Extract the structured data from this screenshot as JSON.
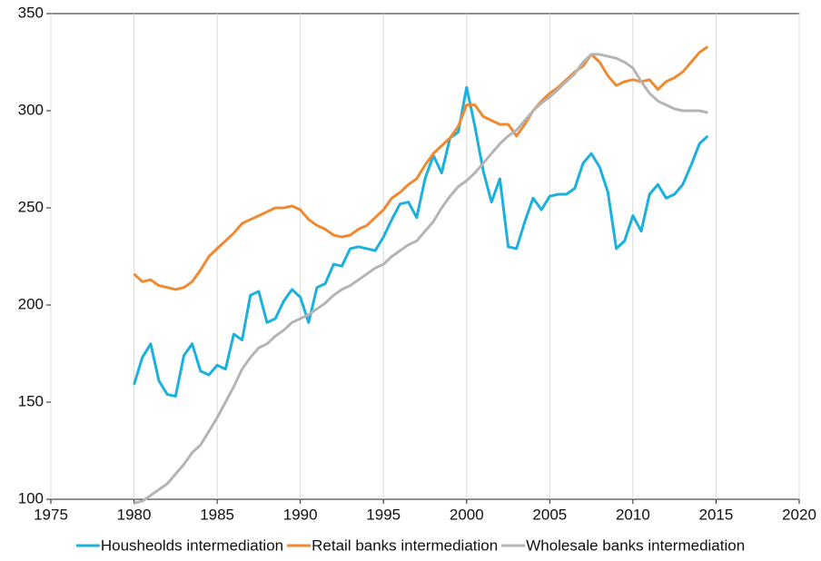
{
  "chart_data": {
    "type": "line",
    "x": [
      1980,
      1980.5,
      1981,
      1981.5,
      1982,
      1982.5,
      1983,
      1983.5,
      1984,
      1984.5,
      1985,
      1985.5,
      1986,
      1986.5,
      1987,
      1987.5,
      1988,
      1988.5,
      1989,
      1989.5,
      1990,
      1990.5,
      1991,
      1991.5,
      1992,
      1992.5,
      1993,
      1993.5,
      1994,
      1994.5,
      1995,
      1995.5,
      1996,
      1996.5,
      1997,
      1997.5,
      1998,
      1998.5,
      1999,
      1999.5,
      2000,
      2000.5,
      2001,
      2001.5,
      2002,
      2002.5,
      2003,
      2003.5,
      2004,
      2004.5,
      2005,
      2005.5,
      2006,
      2006.5,
      2007,
      2007.5,
      2008,
      2008.5,
      2009,
      2009.5,
      2010,
      2010.5,
      2011,
      2011.5,
      2012,
      2012.5,
      2013,
      2013.5,
      2014,
      2014.5
    ],
    "series": [
      {
        "name": "Housheolds intermediation",
        "color": "#1cb0dd",
        "values": [
          159,
          173,
          180,
          161,
          154,
          153,
          174,
          180,
          166,
          164,
          169,
          167,
          185,
          182,
          205,
          207,
          191,
          193,
          202,
          208,
          204,
          191,
          209,
          211,
          221,
          220,
          229,
          230,
          229,
          228,
          235,
          244,
          252,
          253,
          245,
          265,
          277,
          268,
          286,
          289,
          312,
          292,
          269,
          253,
          265,
          230,
          229,
          243,
          255,
          249,
          256,
          257,
          257,
          260,
          273,
          278,
          271,
          258,
          229,
          233,
          246,
          238,
          257,
          262,
          255,
          257,
          262,
          272,
          283,
          287
        ]
      },
      {
        "name": "Retail banks intermediation",
        "color": "#ee8a31",
        "values": [
          216,
          212,
          213,
          210,
          209,
          208,
          209,
          212,
          218,
          225,
          229,
          233,
          237,
          242,
          244,
          246,
          248,
          250,
          250,
          251,
          249,
          244,
          241,
          239,
          236,
          235,
          236,
          239,
          241,
          245,
          249,
          255,
          258,
          262,
          265,
          272,
          278,
          282,
          286,
          292,
          303,
          303,
          297,
          295,
          293,
          293,
          287,
          293,
          300,
          305,
          309,
          312,
          316,
          320,
          323,
          329,
          325,
          318,
          313,
          315,
          316,
          315,
          316,
          311,
          315,
          317,
          320,
          325,
          330,
          333
        ]
      },
      {
        "name": "Wholesale banks intermediation",
        "color": "#b4b4b4",
        "values": [
          98,
          99,
          102,
          105,
          108,
          113,
          118,
          124,
          128,
          135,
          142,
          150,
          158,
          167,
          173,
          178,
          180,
          184,
          187,
          191,
          193,
          195,
          198,
          201,
          205,
          208,
          210,
          213,
          216,
          219,
          221,
          225,
          228,
          231,
          233,
          238,
          243,
          250,
          256,
          261,
          264,
          268,
          273,
          278,
          283,
          287,
          290,
          295,
          300,
          304,
          307,
          311,
          315,
          319,
          325,
          329,
          329,
          328,
          327,
          325,
          322,
          315,
          309,
          305,
          303,
          301,
          300,
          300,
          300,
          299
        ]
      }
    ],
    "xlim": [
      1975,
      2020
    ],
    "xticks": [
      1975,
      1980,
      1985,
      1990,
      1995,
      2000,
      2005,
      2010,
      2015,
      2020
    ],
    "ylim": [
      100,
      350
    ],
    "yticks": [
      100,
      150,
      200,
      250,
      300,
      350
    ],
    "grid": "x",
    "legend": "bottom"
  }
}
